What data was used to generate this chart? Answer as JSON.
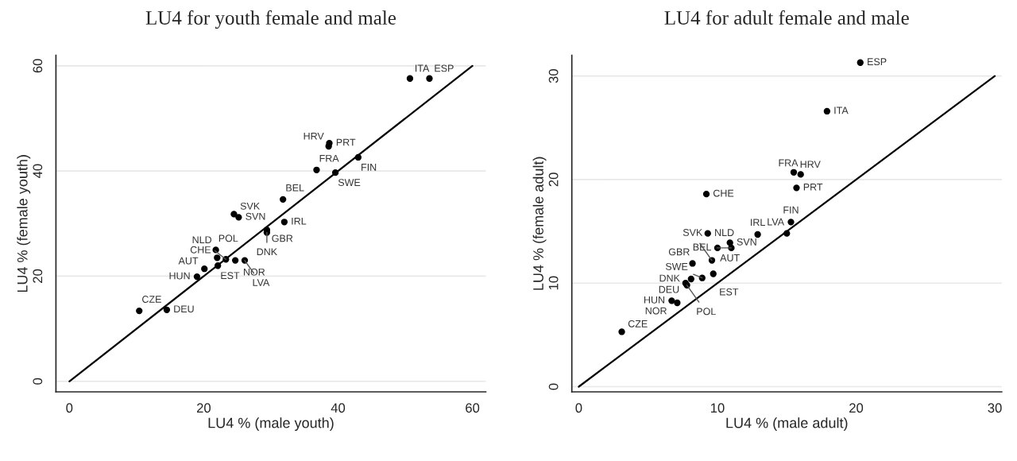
{
  "chart_data": [
    {
      "type": "scatter",
      "title": "LU4 for youth female and male",
      "xlabel": "LU4 % (male youth)",
      "ylabel": "LU4 % (female youth)",
      "xlim": [
        -2,
        62
      ],
      "ylim": [
        -2,
        62
      ],
      "xticks": [
        0,
        20,
        40,
        60
      ],
      "yticks": [
        0,
        20,
        40,
        60
      ],
      "grid": "y",
      "series": [
        {
          "marker": "circle",
          "color": "#000000",
          "x": [
            50.7,
            53.6,
            38.7,
            38.6,
            43.0,
            36.8,
            39.6,
            31.8,
            32.0,
            24.5,
            25.2,
            29.4,
            29.4,
            21.8,
            22.0,
            22.1,
            23.3,
            24.7,
            26.1,
            20.1,
            19.0,
            10.4,
            14.5
          ],
          "values": [
            57.6,
            57.6,
            45.3,
            44.7,
            42.6,
            40.2,
            39.7,
            34.6,
            30.3,
            31.8,
            31.2,
            28.8,
            28.3,
            25.0,
            23.5,
            22.0,
            23.2,
            23.0,
            23.0,
            21.4,
            19.9,
            13.4,
            13.6
          ]
        },
        {
          "type": "line",
          "color": "#000000",
          "x": [
            0,
            60
          ],
          "values": [
            0,
            60
          ]
        }
      ],
      "annotations": [
        {
          "text": "ITA",
          "x": 50.7,
          "y": 57.6
        },
        {
          "text": "ESP",
          "x": 53.6,
          "y": 57.6
        },
        {
          "text": "PRT",
          "x": 38.7,
          "y": 45.3
        },
        {
          "text": "HRV",
          "x": 38.6,
          "y": 44.7
        },
        {
          "text": "FIN",
          "x": 43.0,
          "y": 42.6
        },
        {
          "text": "FRA",
          "x": 36.8,
          "y": 40.2
        },
        {
          "text": "SWE",
          "x": 39.6,
          "y": 39.7
        },
        {
          "text": "BEL",
          "x": 31.8,
          "y": 34.6
        },
        {
          "text": "IRL",
          "x": 32.0,
          "y": 30.3
        },
        {
          "text": "SVK",
          "x": 24.5,
          "y": 31.8
        },
        {
          "text": "SVN",
          "x": 25.2,
          "y": 31.2
        },
        {
          "text": "GBR",
          "x": 29.4,
          "y": 28.8
        },
        {
          "text": "DNK",
          "x": 29.4,
          "y": 28.3
        },
        {
          "text": "POL",
          "x": 21.8,
          "y": 25.0
        },
        {
          "text": "CHE",
          "x": 22.0,
          "y": 23.5
        },
        {
          "text": "EST",
          "x": 22.1,
          "y": 22.0
        },
        {
          "text": "NLD",
          "x": 23.3,
          "y": 23.2
        },
        {
          "text": "NOR",
          "x": 24.7,
          "y": 23.0
        },
        {
          "text": "LVA",
          "x": 26.1,
          "y": 23.0
        },
        {
          "text": "AUT",
          "x": 20.1,
          "y": 21.4
        },
        {
          "text": "HUN",
          "x": 19.0,
          "y": 19.9
        },
        {
          "text": "CZE",
          "x": 10.4,
          "y": 13.4
        },
        {
          "text": "DEU",
          "x": 14.5,
          "y": 13.6
        }
      ]
    },
    {
      "type": "scatter",
      "title": "LU4 for adult female and male",
      "xlabel": "LU4 % (male adult)",
      "ylabel": "LU4 % (female adult)",
      "xlim": [
        -0.5,
        30.5
      ],
      "ylim": [
        -0.5,
        32
      ],
      "xticks": [
        0,
        10,
        20,
        30
      ],
      "yticks": [
        0,
        10,
        20,
        30
      ],
      "grid": "y",
      "series": [
        {
          "marker": "circle",
          "color": "#000000",
          "x": [
            20.3,
            17.9,
            15.5,
            16.0,
            15.7,
            9.2,
            15.3,
            15.0,
            9.3,
            12.9,
            10.9,
            11.0,
            10.0,
            8.2,
            9.6,
            9.7,
            8.9,
            8.1,
            7.7,
            7.8,
            6.7,
            7.1,
            3.1
          ],
          "values": [
            31.3,
            26.6,
            20.7,
            20.5,
            19.2,
            18.6,
            15.9,
            14.8,
            14.8,
            14.7,
            13.9,
            13.4,
            13.4,
            11.9,
            12.2,
            10.9,
            10.5,
            10.4,
            10.0,
            9.8,
            8.3,
            8.1,
            5.3
          ]
        },
        {
          "type": "line",
          "color": "#000000",
          "x": [
            0,
            30
          ],
          "values": [
            0,
            30
          ]
        }
      ],
      "annotations": [
        {
          "text": "ESP",
          "x": 20.3,
          "y": 31.3
        },
        {
          "text": "ITA",
          "x": 17.9,
          "y": 26.6
        },
        {
          "text": "HRV",
          "x": 15.5,
          "y": 20.7
        },
        {
          "text": "FRA",
          "x": 16.0,
          "y": 20.5
        },
        {
          "text": "PRT",
          "x": 15.7,
          "y": 19.2
        },
        {
          "text": "CHE",
          "x": 9.2,
          "y": 18.6
        },
        {
          "text": "FIN",
          "x": 15.3,
          "y": 15.9
        },
        {
          "text": "LVA",
          "x": 15.0,
          "y": 14.8
        },
        {
          "text": "NLD",
          "x": 9.3,
          "y": 14.8
        },
        {
          "text": "IRL",
          "x": 12.9,
          "y": 14.7
        },
        {
          "text": "SVN",
          "x": 10.9,
          "y": 13.9
        },
        {
          "text": "BEL",
          "x": 11.0,
          "y": 13.4
        },
        {
          "text": "AUT",
          "x": 10.0,
          "y": 13.4
        },
        {
          "text": "GBR",
          "x": 8.2,
          "y": 11.9
        },
        {
          "text": "SVK",
          "x": 9.6,
          "y": 12.2
        },
        {
          "text": "EST",
          "x": 9.7,
          "y": 10.9
        },
        {
          "text": "SWE",
          "x": 8.9,
          "y": 10.5
        },
        {
          "text": "DNK",
          "x": 8.1,
          "y": 10.4
        },
        {
          "text": "DEU",
          "x": 7.7,
          "y": 10.0
        },
        {
          "text": "POL",
          "x": 7.8,
          "y": 9.8
        },
        {
          "text": "HUN",
          "x": 6.7,
          "y": 8.3
        },
        {
          "text": "NOR",
          "x": 7.1,
          "y": 8.1
        },
        {
          "text": "CZE",
          "x": 3.1,
          "y": 5.3
        }
      ]
    }
  ]
}
